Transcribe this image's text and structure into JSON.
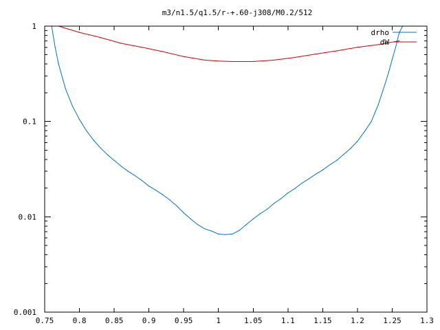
{
  "chart_data": {
    "type": "line",
    "title": "m3/n1.5/q1.5/r-+.60-j308/M0.2/512",
    "xlabel": "",
    "ylabel": "",
    "xlim": [
      0.75,
      1.3
    ],
    "ylim": [
      0.001,
      1
    ],
    "yscale": "log",
    "grid": false,
    "legend_position": "top-right",
    "x_ticks": [
      "0.75",
      "0.8",
      "0.85",
      "0.9",
      "0.95",
      "1",
      "1.05",
      "1.1",
      "1.15",
      "1.2",
      "1.25",
      "1.3"
    ],
    "y_ticks": [
      "0.001",
      "0.01",
      "0.1",
      "1"
    ],
    "series": [
      {
        "name": "drho",
        "color": "#0072bd",
        "x": [
          0.76,
          0.765,
          0.77,
          0.78,
          0.79,
          0.8,
          0.81,
          0.82,
          0.83,
          0.84,
          0.85,
          0.86,
          0.87,
          0.88,
          0.89,
          0.9,
          0.91,
          0.92,
          0.93,
          0.94,
          0.95,
          0.96,
          0.97,
          0.98,
          0.99,
          1.0,
          1.01,
          1.02,
          1.03,
          1.04,
          1.05,
          1.06,
          1.07,
          1.08,
          1.09,
          1.1,
          1.11,
          1.12,
          1.13,
          1.14,
          1.15,
          1.16,
          1.17,
          1.18,
          1.19,
          1.2,
          1.21,
          1.22,
          1.23,
          1.24,
          1.245,
          1.25,
          1.255,
          1.26,
          1.265
        ],
        "y": [
          1.0,
          0.6,
          0.4,
          0.22,
          0.145,
          0.105,
          0.08,
          0.064,
          0.053,
          0.045,
          0.039,
          0.034,
          0.03,
          0.027,
          0.024,
          0.021,
          0.019,
          0.017,
          0.015,
          0.013,
          0.011,
          0.0095,
          0.0083,
          0.0075,
          0.0071,
          0.0066,
          0.0065,
          0.0066,
          0.0072,
          0.0083,
          0.0095,
          0.0108,
          0.012,
          0.0138,
          0.0155,
          0.0178,
          0.0198,
          0.0225,
          0.025,
          0.028,
          0.031,
          0.035,
          0.039,
          0.045,
          0.052,
          0.062,
          0.078,
          0.1,
          0.15,
          0.25,
          0.33,
          0.45,
          0.6,
          0.85,
          1.0
        ]
      },
      {
        "name": "dW",
        "color": "#cc0000",
        "x": [
          0.77,
          0.8,
          0.83,
          0.86,
          0.89,
          0.92,
          0.95,
          0.98,
          1.0,
          1.02,
          1.05,
          1.08,
          1.11,
          1.14,
          1.17,
          1.2,
          1.23,
          1.26
        ],
        "y": [
          1.0,
          0.86,
          0.76,
          0.66,
          0.6,
          0.54,
          0.48,
          0.44,
          0.43,
          0.425,
          0.425,
          0.44,
          0.47,
          0.51,
          0.55,
          0.6,
          0.64,
          0.7
        ]
      }
    ]
  }
}
